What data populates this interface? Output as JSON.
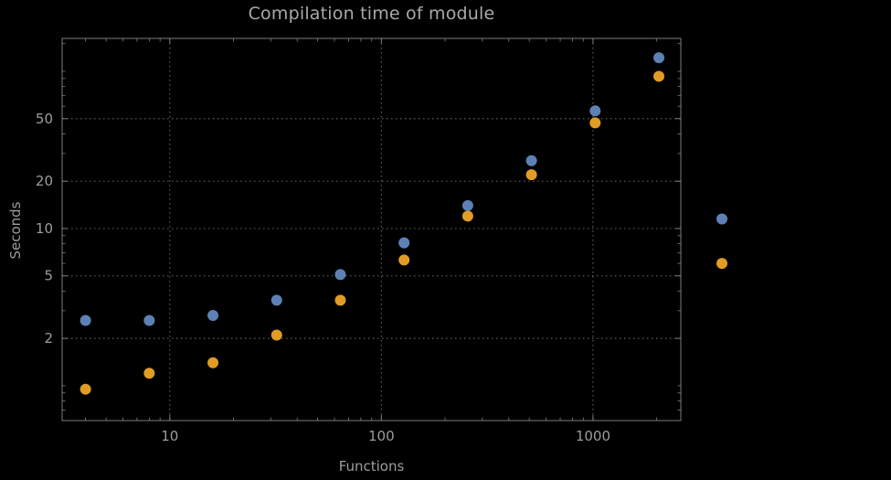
{
  "chart_data": {
    "type": "scatter",
    "title": "Compilation time of module",
    "xlabel": "Functions",
    "ylabel": "Seconds",
    "xscale": "log",
    "yscale": "log",
    "xlim": [
      3.1,
      2600
    ],
    "ylim": [
      0.6,
      162
    ],
    "x_ticks": [
      10,
      100,
      1000
    ],
    "y_ticks": [
      2,
      5,
      10,
      20,
      50
    ],
    "grid": true,
    "legend_position": "outside-right",
    "series": [
      {
        "name": "blue",
        "color": "#5e81b5",
        "points": [
          [
            4,
            2.6
          ],
          [
            8,
            2.6
          ],
          [
            16,
            2.8
          ],
          [
            32,
            3.5
          ],
          [
            64,
            5.1
          ],
          [
            128,
            8.1
          ],
          [
            256,
            14
          ],
          [
            512,
            27
          ],
          [
            1024,
            56
          ],
          [
            2048,
            122
          ]
        ]
      },
      {
        "name": "orange",
        "color": "#e19c24",
        "points": [
          [
            4,
            0.95
          ],
          [
            8,
            1.2
          ],
          [
            16,
            1.4
          ],
          [
            32,
            2.1
          ],
          [
            64,
            3.5
          ],
          [
            128,
            6.3
          ],
          [
            256,
            12
          ],
          [
            512,
            22
          ],
          [
            1024,
            47
          ],
          [
            2048,
            93
          ]
        ]
      }
    ],
    "legend_markers": [
      {
        "series": "blue",
        "color": "#5e81b5",
        "y": 11.5
      },
      {
        "series": "orange",
        "color": "#e19c24",
        "y": 6.0
      }
    ]
  },
  "colors": {
    "background": "#000000",
    "frame": "#7d7d7d",
    "grid": "#5e5e5e",
    "text": "#9d9d9d",
    "title_text": "#a9a9a9"
  }
}
